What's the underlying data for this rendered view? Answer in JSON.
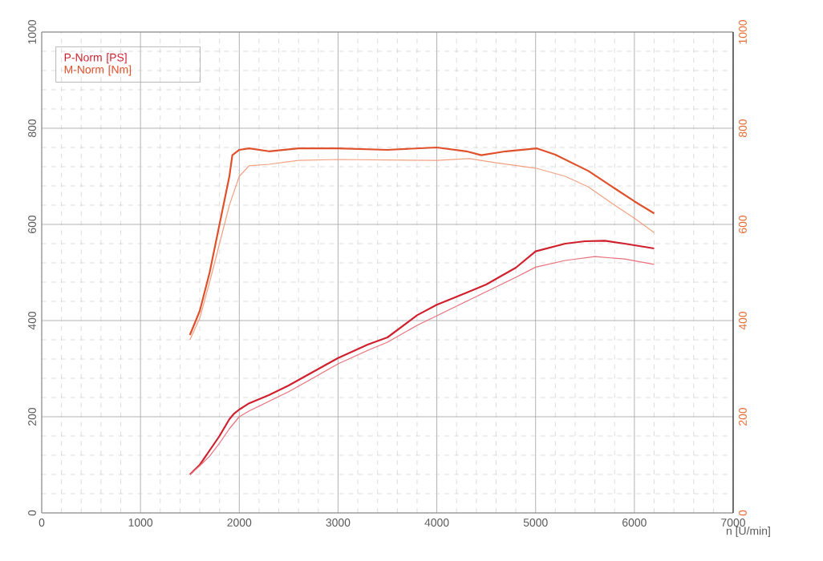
{
  "chart_data": {
    "type": "line",
    "xlabel": "n [U/min]",
    "xlim": [
      0,
      7000
    ],
    "xticks": [
      0,
      1000,
      2000,
      3000,
      4000,
      5000,
      6000,
      7000
    ],
    "ylim": [
      0,
      1000
    ],
    "yticks": [
      0,
      200,
      400,
      600,
      800,
      1000
    ],
    "y2lim": [
      0,
      1000
    ],
    "y2ticks": [
      0,
      200,
      400,
      600,
      800,
      1000
    ],
    "grid": true,
    "legend": "top left",
    "marker": "none",
    "line_style": "solid",
    "series": [
      {
        "name": "P-Norm [PS]",
        "color": "#d0202e",
        "x": [
          1500,
          1600,
          1700,
          1800,
          1900,
          1950,
          2000,
          2100,
          2300,
          2500,
          2700,
          3000,
          3300,
          3500,
          3800,
          4000,
          4300,
          4500,
          4800,
          5000,
          5300,
          5500,
          5700,
          5900,
          6200
        ],
        "values": [
          80,
          100,
          130,
          160,
          195,
          207,
          215,
          228,
          245,
          265,
          288,
          322,
          350,
          365,
          411,
          433,
          458,
          475,
          510,
          544,
          560,
          565,
          566,
          560,
          550
        ]
      },
      {
        "color": "#e8707a",
        "x": [
          1500,
          1600,
          1700,
          1800,
          1900,
          2000,
          2100,
          2300,
          2500,
          2700,
          3000,
          3300,
          3500,
          3800,
          4000,
          4300,
          4500,
          4800,
          5000,
          5300,
          5600,
          5900,
          6200
        ],
        "values": [
          80,
          98,
          118,
          145,
          175,
          200,
          212,
          232,
          252,
          275,
          310,
          338,
          355,
          390,
          410,
          440,
          460,
          490,
          511,
          525,
          533,
          528,
          517
        ]
      },
      {
        "name": "M-Norm [Nm]",
        "color": "#e0502a",
        "axis": "y2",
        "x": [
          1500,
          1600,
          1700,
          1800,
          1900,
          1930,
          2000,
          2100,
          2300,
          2600,
          3000,
          3500,
          4000,
          4300,
          4450,
          4700,
          5015,
          5200,
          5535,
          5800,
          6000,
          6200
        ],
        "values": [
          370,
          420,
          500,
          600,
          700,
          744,
          755,
          758,
          752,
          758,
          758,
          755,
          760,
          752,
          744,
          752,
          758,
          745,
          711,
          675,
          648,
          623
        ]
      },
      {
        "color": "#f0a080",
        "axis": "y2",
        "x": [
          1500,
          1600,
          1700,
          1800,
          1900,
          2000,
          2100,
          2300,
          2600,
          3000,
          3500,
          4000,
          4330,
          4600,
          5000,
          5300,
          5535,
          5800,
          6000,
          6200
        ],
        "values": [
          360,
          405,
          480,
          560,
          640,
          700,
          722,
          725,
          733,
          735,
          734,
          733,
          737,
          728,
          717,
          700,
          678,
          640,
          613,
          583
        ]
      }
    ]
  }
}
